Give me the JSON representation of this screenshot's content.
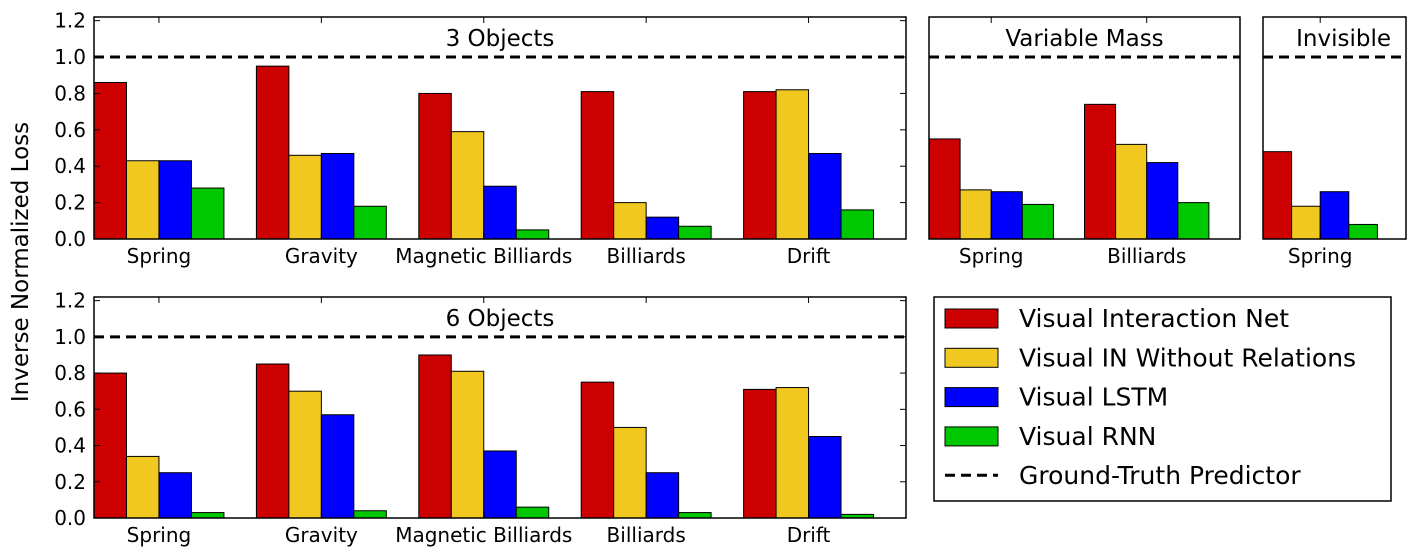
{
  "chart_data": [
    {
      "id": "3obj",
      "type": "bar",
      "title": "3 Objects",
      "categories": [
        "Spring",
        "Gravity",
        "Magnetic Billiards",
        "Billiards",
        "Drift"
      ],
      "series": [
        {
          "name": "Visual Interaction Net",
          "values": [
            0.86,
            0.95,
            0.8,
            0.81,
            0.81
          ]
        },
        {
          "name": "Visual IN Without Relations",
          "values": [
            0.43,
            0.46,
            0.59,
            0.2,
            0.82
          ]
        },
        {
          "name": "Visual LSTM",
          "values": [
            0.43,
            0.47,
            0.29,
            0.12,
            0.47
          ]
        },
        {
          "name": "Visual RNN",
          "values": [
            0.28,
            0.18,
            0.05,
            0.07,
            0.16
          ]
        }
      ],
      "ground_truth": 1.0,
      "ylim": [
        0,
        1.22
      ],
      "yticks": [
        "0.0",
        "0.2",
        "0.4",
        "0.6",
        "0.8",
        "1.0",
        "1.2"
      ],
      "show_yticklabels": true
    },
    {
      "id": "varmass",
      "type": "bar",
      "title": "Variable Mass",
      "categories": [
        "Spring",
        "Billiards"
      ],
      "series": [
        {
          "name": "Visual Interaction Net",
          "values": [
            0.55,
            0.74
          ]
        },
        {
          "name": "Visual IN Without Relations",
          "values": [
            0.27,
            0.52
          ]
        },
        {
          "name": "Visual LSTM",
          "values": [
            0.26,
            0.42
          ]
        },
        {
          "name": "Visual RNN",
          "values": [
            0.19,
            0.2
          ]
        }
      ],
      "ground_truth": 1.0,
      "ylim": [
        0,
        1.22
      ],
      "yticks": [],
      "show_yticklabels": false
    },
    {
      "id": "invisible",
      "type": "bar",
      "title": "Invisible",
      "categories": [
        "Spring"
      ],
      "series": [
        {
          "name": "Visual Interaction Net",
          "values": [
            0.48
          ]
        },
        {
          "name": "Visual IN Without Relations",
          "values": [
            0.18
          ]
        },
        {
          "name": "Visual LSTM",
          "values": [
            0.26
          ]
        },
        {
          "name": "Visual RNN",
          "values": [
            0.08
          ]
        }
      ],
      "ground_truth": 1.0,
      "ylim": [
        0,
        1.22
      ],
      "yticks": [],
      "show_yticklabels": false
    },
    {
      "id": "6obj",
      "type": "bar",
      "title": "6 Objects",
      "categories": [
        "Spring",
        "Gravity",
        "Magnetic Billiards",
        "Billiards",
        "Drift"
      ],
      "series": [
        {
          "name": "Visual Interaction Net",
          "values": [
            0.8,
            0.85,
            0.9,
            0.75,
            0.71
          ]
        },
        {
          "name": "Visual IN Without Relations",
          "values": [
            0.34,
            0.7,
            0.81,
            0.5,
            0.72
          ]
        },
        {
          "name": "Visual LSTM",
          "values": [
            0.25,
            0.57,
            0.37,
            0.25,
            0.45
          ]
        },
        {
          "name": "Visual RNN",
          "values": [
            0.03,
            0.04,
            0.06,
            0.03,
            0.02
          ]
        }
      ],
      "ground_truth": 1.0,
      "ylim": [
        0,
        1.22
      ],
      "yticks": [
        "0.0",
        "0.2",
        "0.4",
        "0.6",
        "0.8",
        "1.0",
        "1.2"
      ],
      "show_yticklabels": true
    }
  ],
  "ylabel": "Inverse Normalized Loss",
  "legend": {
    "items": [
      {
        "label": "Visual Interaction Net",
        "kind": "patch",
        "color": "#cc0000"
      },
      {
        "label": "Visual IN Without Relations",
        "kind": "patch",
        "color": "#f0c820"
      },
      {
        "label": "Visual LSTM",
        "kind": "patch",
        "color": "#0000ff"
      },
      {
        "label": "Visual RNN",
        "kind": "patch",
        "color": "#00c800"
      },
      {
        "label": "Ground-Truth Predictor",
        "kind": "dash",
        "color": "#000000"
      }
    ]
  },
  "colors": {
    "Visual Interaction Net": "#cc0000",
    "Visual IN Without Relations": "#f0c820",
    "Visual LSTM": "#0000ff",
    "Visual RNN": "#00c800"
  }
}
